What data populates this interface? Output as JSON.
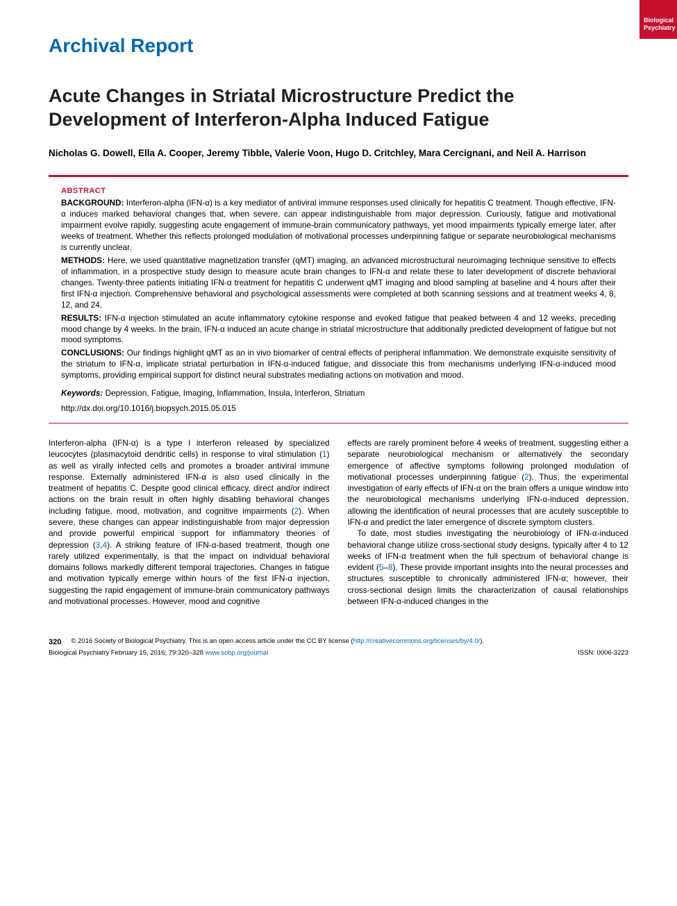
{
  "journal_tab": {
    "line1": "Biological",
    "line2": "Psychiatry"
  },
  "section_label": "Archival Report",
  "title": "Acute Changes in Striatal Microstructure Predict the Development of Interferon-Alpha Induced Fatigue",
  "authors": "Nicholas G. Dowell, Ella A. Cooper, Jeremy Tibble, Valerie Voon, Hugo D. Critchley, Mara Cercignani, and Neil A. Harrison",
  "abstract": {
    "heading": "ABSTRACT",
    "background_label": "BACKGROUND:",
    "background": "Interferon-alpha (IFN-α) is a key mediator of antiviral immune responses used clinically for hepatitis C treatment. Though effective, IFN-α induces marked behavioral changes that, when severe, can appear indistinguishable from major depression. Curiously, fatigue and motivational impairment evolve rapidly, suggesting acute engagement of immune-brain communicatory pathways, yet mood impairments typically emerge later, after weeks of treatment. Whether this reflects prolonged modulation of motivational processes underpinning fatigue or separate neurobiological mechanisms is currently unclear.",
    "methods_label": "METHODS:",
    "methods": "Here, we used quantitative magnetization transfer (qMT) imaging, an advanced microstructural neuroimaging technique sensitive to effects of inflammation, in a prospective study design to measure acute brain changes to IFN-α and relate these to later development of discrete behavioral changes. Twenty-three patients initiating IFN-α treatment for hepatitis C underwent qMT imaging and blood sampling at baseline and 4 hours after their first IFN-α injection. Comprehensive behavioral and psychological assessments were completed at both scanning sessions and at treatment weeks 4, 8, 12, and 24.",
    "results_label": "RESULTS:",
    "results": "IFN-α injection stimulated an acute inflammatory cytokine response and evoked fatigue that peaked between 4 and 12 weeks, preceding mood change by 4 weeks. In the brain, IFN-α induced an acute change in striatal microstructure that additionally predicted development of fatigue but not mood symptoms.",
    "conclusions_label": "CONCLUSIONS:",
    "conclusions": "Our findings highlight qMT as an in vivo biomarker of central effects of peripheral inflammation. We demonstrate exquisite sensitivity of the striatum to IFN-α, implicate striatal perturbation in IFN-α-induced fatigue, and dissociate this from mechanisms underlying IFN-α-induced mood symptoms, providing empirical support for distinct neural substrates mediating actions on motivation and mood.",
    "keywords_label": "Keywords:",
    "keywords": "Depression, Fatigue, Imaging, Inflammation, Insula, Interferon, Striatum",
    "doi": "http://dx.doi.org/10.1016/j.biopsych.2015.05.015"
  },
  "body": {
    "col1_p1a": "Interferon-alpha (IFN-α) is a type I interferon released by specialized leucocytes (plasmacytoid dendritic cells) in response to viral stimulation (",
    "col1_p1_ref1": "1",
    "col1_p1b": ") as well as virally infected cells and promotes a broader antiviral immune response. Externally administered IFN-α is also used clinically in the treatment of hepatitis C. Despite good clinical efficacy, direct and/or indirect actions on the brain result in often highly disabling behavioral changes including fatigue, mood, motivation, and cognitive impairments (",
    "col1_p1_ref2": "2",
    "col1_p1c": "). When severe, these changes can appear indistinguishable from major depression and provide powerful empirical support for inflammatory theories of depression (",
    "col1_p1_ref3": "3",
    "col1_p1_comma": ",",
    "col1_p1_ref4": "4",
    "col1_p1d": "). A striking feature of IFN-α-based treatment, though one rarely utilized experimentally, is that the impact on individual behavioral domains follows markedly different temporal trajectories. Changes in fatigue and motivation typically emerge within hours of the first IFN-α injection, suggesting the rapid engagement of immune-brain communicatory pathways and motivational processes. However, mood and cognitive",
    "col2_p1a": "effects are rarely prominent before 4 weeks of treatment, suggesting either a separate neurobiological mechanism or alternatively the secondary emergence of affective symptoms following prolonged modulation of motivational processes underpinning fatigue (",
    "col2_p1_ref2": "2",
    "col2_p1b": "). Thus, the experimental investigation of early effects of IFN-α on the brain offers a unique window into the neurobiological mechanisms underlying IFN-α-induced depression, allowing the identification of neural processes that are acutely susceptible to IFN-α and predict the later emergence of discrete symptom clusters.",
    "col2_p2a": "To date, most studies investigating the neurobiology of IFN-α-induced behavioral change utilize cross-sectional study designs, typically after 4 to 12 weeks of IFN-α treatment when the full spectrum of behavioral change is evident (",
    "col2_p2_ref5": "5",
    "col2_p2_dash": "–",
    "col2_p2_ref8": "8",
    "col2_p2b": "). These provide important insights into the neural processes and structures susceptible to chronically administered IFN-α; however, their cross-sectional design limits the characterization of causal relationships between IFN-α-induced changes in the"
  },
  "footer": {
    "page_num": "320",
    "copyright_a": "© 2016 Society of Biological Psychiatry. This is an open access article under the CC BY license (",
    "license_url": "http://creativecommons.org/licenses/by/4.0/",
    "copyright_b": ").",
    "citation_a": "Biological Psychiatry February 15, 2016; 79:320–328 ",
    "journal_url": "www.sobp.org/journal",
    "issn": "ISSN: 0006-3223"
  },
  "colors": {
    "accent_blue": "#0068b3",
    "accent_red": "#c8102e",
    "text": "#000000",
    "background": "#ffffff"
  }
}
